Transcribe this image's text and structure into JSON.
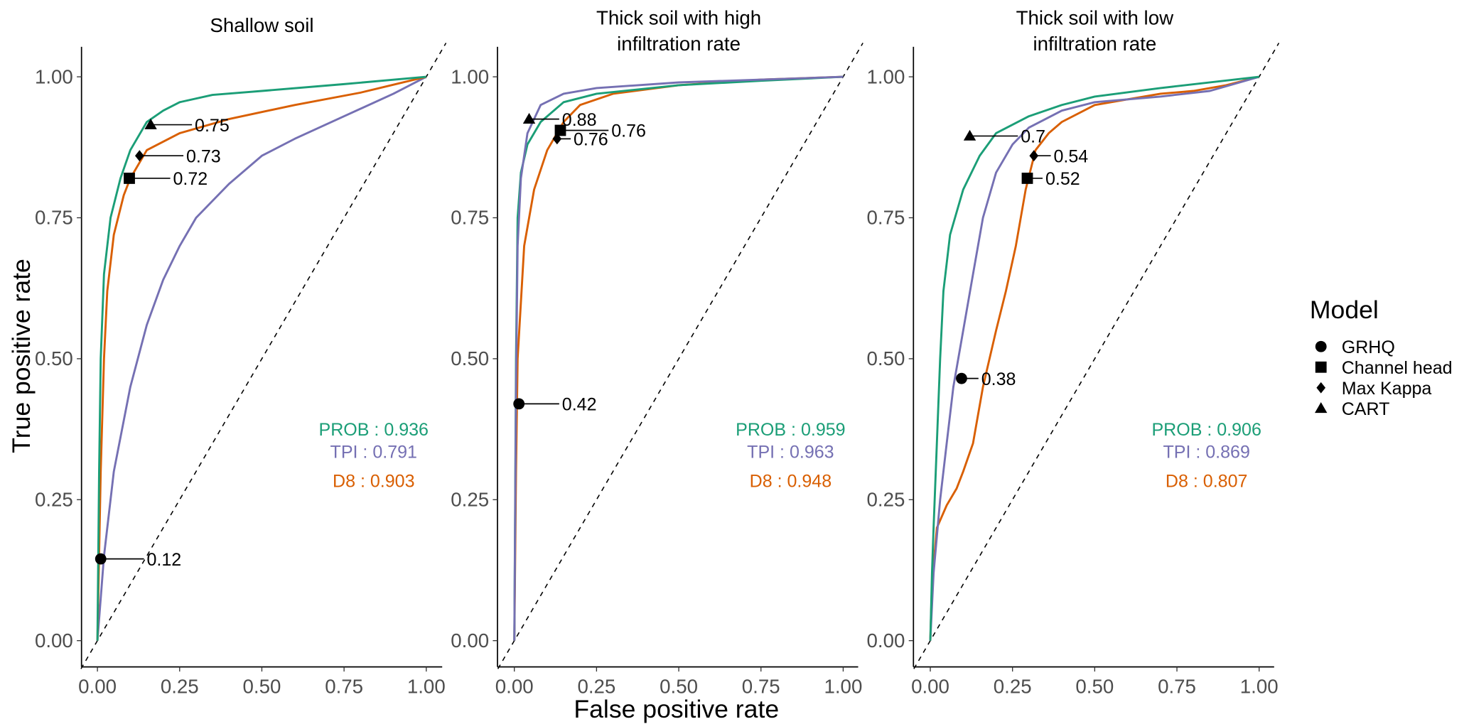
{
  "chart_data": {
    "type": "line",
    "xlabel": "False positive rate",
    "ylabel": "True positive rate",
    "xlim": [
      0,
      1
    ],
    "ylim": [
      0,
      1
    ],
    "x_ticks": [
      "0.00",
      "0.25",
      "0.50",
      "0.75",
      "1.00"
    ],
    "y_ticks": [
      "0.00",
      "0.25",
      "0.50",
      "0.75",
      "1.00"
    ],
    "grid": false,
    "diagonal_reference": true,
    "colors": {
      "PROB": "#1b9e77",
      "TPI": "#7570b3",
      "D8": "#d95f02"
    },
    "legend": {
      "title": "Model",
      "placement": "right",
      "items": [
        {
          "label": "GRHQ",
          "shape": "circle"
        },
        {
          "label": "Channel head",
          "shape": "square"
        },
        {
          "label": "Max Kappa",
          "shape": "diamond"
        },
        {
          "label": "CART",
          "shape": "triangle"
        }
      ]
    },
    "panels": [
      {
        "title": [
          "Shallow soil"
        ],
        "auc": [
          {
            "model": "PROB",
            "text": "PROB : 0.936"
          },
          {
            "model": "TPI",
            "text": "TPI : 0.791"
          },
          {
            "model": "D8",
            "text": "D8 : 0.903"
          }
        ],
        "series": [
          {
            "name": "TPI",
            "points": [
              [
                0,
                0
              ],
              [
                0.02,
                0.15
              ],
              [
                0.05,
                0.3
              ],
              [
                0.1,
                0.45
              ],
              [
                0.15,
                0.56
              ],
              [
                0.2,
                0.64
              ],
              [
                0.25,
                0.7
              ],
              [
                0.3,
                0.75
              ],
              [
                0.4,
                0.81
              ],
              [
                0.5,
                0.86
              ],
              [
                0.6,
                0.89
              ],
              [
                0.75,
                0.93
              ],
              [
                0.9,
                0.97
              ],
              [
                1,
                1
              ]
            ]
          },
          {
            "name": "D8",
            "points": [
              [
                0,
                0
              ],
              [
                0.01,
                0.3
              ],
              [
                0.02,
                0.5
              ],
              [
                0.03,
                0.62
              ],
              [
                0.05,
                0.72
              ],
              [
                0.08,
                0.79
              ],
              [
                0.1,
                0.82
              ],
              [
                0.15,
                0.87
              ],
              [
                0.25,
                0.9
              ],
              [
                0.4,
                0.925
              ],
              [
                0.6,
                0.95
              ],
              [
                0.8,
                0.972
              ],
              [
                1,
                1
              ]
            ]
          },
          {
            "name": "PROB",
            "points": [
              [
                0,
                0
              ],
              [
                0.005,
                0.3
              ],
              [
                0.01,
                0.5
              ],
              [
                0.02,
                0.65
              ],
              [
                0.04,
                0.75
              ],
              [
                0.07,
                0.82
              ],
              [
                0.1,
                0.87
              ],
              [
                0.15,
                0.92
              ],
              [
                0.2,
                0.94
              ],
              [
                0.25,
                0.955
              ],
              [
                0.35,
                0.968
              ],
              [
                0.5,
                0.975
              ],
              [
                0.75,
                0.987
              ],
              [
                1,
                1
              ]
            ]
          }
        ],
        "markers": [
          {
            "model": "GRHQ",
            "shape": "circle",
            "x": 0.01,
            "y": 0.145,
            "label": "0.12",
            "label_x": 0.15
          },
          {
            "model": "Channel head",
            "shape": "square",
            "x": 0.097,
            "y": 0.82,
            "label": "0.72",
            "label_x": 0.23
          },
          {
            "model": "Max Kappa",
            "shape": "diamond",
            "x": 0.128,
            "y": 0.86,
            "label": "0.73",
            "label_x": 0.27
          },
          {
            "model": "CART",
            "shape": "triangle",
            "x": 0.162,
            "y": 0.915,
            "label": "0.75",
            "label_x": 0.296
          }
        ]
      },
      {
        "title": [
          "Thick soil with high",
          "infiltration rate"
        ],
        "auc": [
          {
            "model": "PROB",
            "text": "PROB : 0.959"
          },
          {
            "model": "TPI",
            "text": "TPI : 0.963"
          },
          {
            "model": "D8",
            "text": "D8 : 0.948"
          }
        ],
        "series": [
          {
            "name": "D8",
            "points": [
              [
                0,
                0
              ],
              [
                0.005,
                0.3
              ],
              [
                0.01,
                0.5
              ],
              [
                0.03,
                0.7
              ],
              [
                0.06,
                0.8
              ],
              [
                0.1,
                0.87
              ],
              [
                0.15,
                0.92
              ],
              [
                0.2,
                0.95
              ],
              [
                0.3,
                0.97
              ],
              [
                0.5,
                0.985
              ],
              [
                0.75,
                0.995
              ],
              [
                1,
                1
              ]
            ]
          },
          {
            "name": "PROB",
            "points": [
              [
                0,
                0
              ],
              [
                0.005,
                0.5
              ],
              [
                0.01,
                0.75
              ],
              [
                0.02,
                0.83
              ],
              [
                0.04,
                0.88
              ],
              [
                0.08,
                0.92
              ],
              [
                0.15,
                0.955
              ],
              [
                0.25,
                0.97
              ],
              [
                0.5,
                0.985
              ],
              [
                0.75,
                0.993
              ],
              [
                1,
                1
              ]
            ]
          },
          {
            "name": "TPI",
            "points": [
              [
                0,
                0
              ],
              [
                0.005,
                0.45
              ],
              [
                0.01,
                0.7
              ],
              [
                0.02,
                0.82
              ],
              [
                0.04,
                0.9
              ],
              [
                0.08,
                0.95
              ],
              [
                0.15,
                0.97
              ],
              [
                0.25,
                0.98
              ],
              [
                0.5,
                0.99
              ],
              [
                1,
                1
              ]
            ]
          }
        ],
        "markers": [
          {
            "model": "GRHQ",
            "shape": "circle",
            "x": 0.014,
            "y": 0.42,
            "label": "0.42",
            "label_x": 0.145
          },
          {
            "model": "Channel head",
            "shape": "square",
            "x": 0.14,
            "y": 0.905,
            "label": "0.76",
            "label_x": 0.295
          },
          {
            "model": "Max Kappa",
            "shape": "diamond",
            "x": 0.13,
            "y": 0.89,
            "label": "0.76",
            "label_x": 0.18
          },
          {
            "model": "CART",
            "shape": "triangle",
            "x": 0.045,
            "y": 0.925,
            "label": "0.88",
            "label_x": 0.145
          }
        ]
      },
      {
        "title": [
          "Thick soil with low",
          "infiltration rate"
        ],
        "auc": [
          {
            "model": "PROB",
            "text": "PROB : 0.906"
          },
          {
            "model": "TPI",
            "text": "TPI : 0.869"
          },
          {
            "model": "D8",
            "text": "D8 : 0.807"
          }
        ],
        "series": [
          {
            "name": "D8",
            "points": [
              [
                0,
                0
              ],
              [
                0.005,
                0.1
              ],
              [
                0.02,
                0.2
              ],
              [
                0.05,
                0.24
              ],
              [
                0.08,
                0.27
              ],
              [
                0.1,
                0.3
              ],
              [
                0.13,
                0.35
              ],
              [
                0.16,
                0.45
              ],
              [
                0.2,
                0.55
              ],
              [
                0.23,
                0.62
              ],
              [
                0.26,
                0.7
              ],
              [
                0.29,
                0.8
              ],
              [
                0.32,
                0.87
              ],
              [
                0.36,
                0.9
              ],
              [
                0.4,
                0.92
              ],
              [
                0.5,
                0.95
              ],
              [
                0.6,
                0.96
              ],
              [
                0.7,
                0.97
              ],
              [
                0.8,
                0.975
              ],
              [
                0.9,
                0.985
              ],
              [
                1,
                1
              ]
            ]
          },
          {
            "name": "TPI",
            "points": [
              [
                0,
                0
              ],
              [
                0.01,
                0.12
              ],
              [
                0.03,
                0.25
              ],
              [
                0.05,
                0.35
              ],
              [
                0.07,
                0.45
              ],
              [
                0.1,
                0.55
              ],
              [
                0.13,
                0.65
              ],
              [
                0.16,
                0.75
              ],
              [
                0.2,
                0.83
              ],
              [
                0.25,
                0.88
              ],
              [
                0.3,
                0.91
              ],
              [
                0.4,
                0.94
              ],
              [
                0.5,
                0.955
              ],
              [
                0.7,
                0.965
              ],
              [
                0.85,
                0.975
              ],
              [
                1,
                1
              ]
            ]
          },
          {
            "name": "PROB",
            "points": [
              [
                0,
                0
              ],
              [
                0.005,
                0.12
              ],
              [
                0.01,
                0.2
              ],
              [
                0.02,
                0.35
              ],
              [
                0.03,
                0.5
              ],
              [
                0.04,
                0.62
              ],
              [
                0.06,
                0.72
              ],
              [
                0.1,
                0.8
              ],
              [
                0.15,
                0.86
              ],
              [
                0.2,
                0.9
              ],
              [
                0.3,
                0.93
              ],
              [
                0.4,
                0.95
              ],
              [
                0.5,
                0.965
              ],
              [
                0.7,
                0.98
              ],
              [
                1,
                1
              ]
            ]
          }
        ],
        "markers": [
          {
            "model": "GRHQ",
            "shape": "circle",
            "x": 0.095,
            "y": 0.465,
            "label": "0.38",
            "label_x": 0.155
          },
          {
            "model": "Channel head",
            "shape": "square",
            "x": 0.295,
            "y": 0.82,
            "label": "0.52",
            "label_x": 0.35
          },
          {
            "model": "Max Kappa",
            "shape": "diamond",
            "x": 0.315,
            "y": 0.86,
            "label": "0.54",
            "label_x": 0.375
          },
          {
            "model": "CART",
            "shape": "triangle",
            "x": 0.12,
            "y": 0.895,
            "label": "0.7",
            "label_x": 0.275
          }
        ]
      }
    ]
  }
}
